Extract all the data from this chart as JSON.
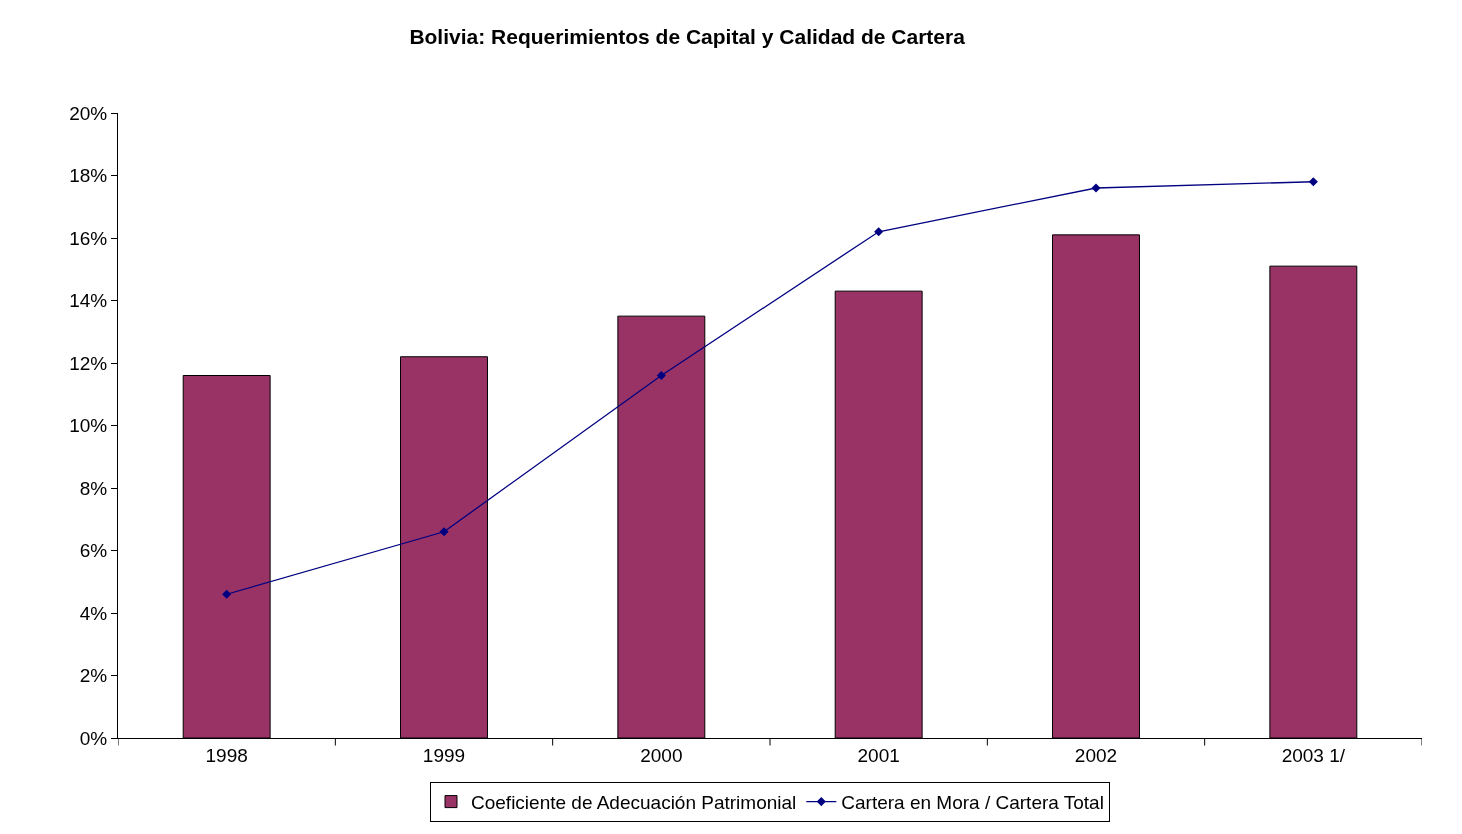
{
  "chart_data": {
    "type": "bar",
    "title": "Bolivia: Requerimientos de Capital y Calidad de Cartera",
    "categories": [
      "1998",
      "1999",
      "2000",
      "2001",
      "2002",
      "2003 1/"
    ],
    "series": [
      {
        "name": "Coeficiente de Adecuación Patrimonial",
        "color": "#993366",
        "values": [
          11.6,
          12.2,
          13.5,
          14.3,
          16.1,
          15.1
        ]
      },
      {
        "name": "Cartera en Mora / Cartera Total",
        "type": "line",
        "color": "#000080",
        "marker": "diamond",
        "line_style": "solid",
        "values": [
          4.6,
          6.6,
          11.6,
          16.2,
          17.6,
          17.8
        ]
      }
    ],
    "ylim": [
      0,
      20
    ],
    "yticks": [
      {
        "value": 0,
        "label": "0%"
      },
      {
        "value": 2,
        "label": "2%"
      },
      {
        "value": 4,
        "label": "4%"
      },
      {
        "value": 6,
        "label": "6%"
      },
      {
        "value": 8,
        "label": "8%"
      },
      {
        "value": 10,
        "label": "10%"
      },
      {
        "value": 12,
        "label": "12%"
      },
      {
        "value": 14,
        "label": "14%"
      },
      {
        "value": 16,
        "label": "16%"
      },
      {
        "value": 18,
        "label": "18%"
      },
      {
        "value": 20,
        "label": "20%"
      }
    ],
    "grid": false,
    "legend": "bottom"
  }
}
